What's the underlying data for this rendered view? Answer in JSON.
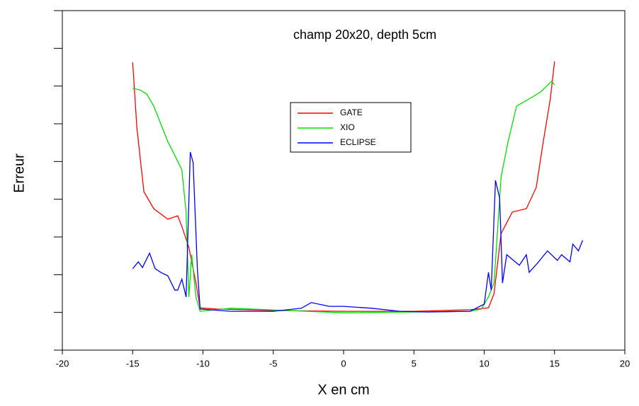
{
  "chart_data": {
    "type": "line",
    "title": "champ 20x20, depth 5cm",
    "xlabel": "X en cm",
    "ylabel": "Erreur",
    "xlim": [
      -20,
      20
    ],
    "xticks": [
      -20,
      -15,
      -10,
      -5,
      0,
      5,
      10,
      15,
      20
    ],
    "ylim": [
      0,
      9
    ],
    "yticks": [
      0,
      1,
      2,
      3,
      4,
      5,
      6,
      7,
      8,
      9
    ],
    "series": [
      {
        "name": "GATE",
        "color": "#ff0000",
        "x": [
          -15,
          -14.7,
          -14.2,
          -13.5,
          -12.5,
          -11.8,
          -11.5,
          -11,
          -10.5,
          -10.2,
          -9,
          -5,
          0,
          5,
          9,
          10.3,
          10.7,
          11.2,
          12,
          13,
          13.7,
          14.2,
          14.7,
          15
        ],
        "values": [
          7.63,
          5.9,
          4.2,
          3.75,
          3.47,
          3.56,
          3.28,
          2.72,
          1.78,
          1.12,
          1.09,
          1.05,
          1.03,
          1.03,
          1.07,
          1.12,
          1.5,
          3.09,
          3.66,
          3.75,
          4.31,
          5.53,
          6.66,
          7.65
        ]
      },
      {
        "name": "XIO",
        "color": "#00e000",
        "x": [
          -15,
          -14.5,
          -14,
          -13.5,
          -13,
          -12.5,
          -12,
          -11.5,
          -11.2,
          -11,
          -10.8,
          -10.5,
          -10.2,
          -8,
          0,
          9,
          9.8,
          10.3,
          10.7,
          11.2,
          11.7,
          12.3,
          13.2,
          14,
          14.8,
          15
        ],
        "values": [
          6.94,
          6.9,
          6.79,
          6.47,
          6.0,
          5.53,
          5.16,
          4.78,
          3.66,
          1.41,
          2.53,
          1.41,
          1.03,
          1.11,
          0.99,
          1.03,
          1.09,
          1.41,
          1.78,
          4.59,
          5.53,
          6.47,
          6.66,
          6.84,
          7.13,
          7.03
        ]
      },
      {
        "name": "ECLIPSE",
        "color": "#0000ff",
        "x": [
          -15,
          -14.6,
          -14.3,
          -13.8,
          -13.4,
          -13,
          -12.5,
          -12,
          -11.8,
          -11.5,
          -11.2,
          -10.9,
          -10.7,
          -10.4,
          -10.2,
          -8,
          -5,
          -3,
          -2.3,
          -1,
          0,
          2,
          4,
          6,
          9,
          10,
          10.3,
          10.5,
          10.8,
          11.1,
          11.3,
          11.6,
          12.5,
          13,
          13.2,
          13.8,
          14.5,
          15.2,
          15.5,
          16.1,
          16.3,
          16.7,
          17
        ],
        "values": [
          2.16,
          2.34,
          2.19,
          2.57,
          2.16,
          2.06,
          1.97,
          1.59,
          1.59,
          1.88,
          1.41,
          5.25,
          4.97,
          2.16,
          1.09,
          1.03,
          1.03,
          1.11,
          1.26,
          1.16,
          1.16,
          1.11,
          1.03,
          1.01,
          1.03,
          1.22,
          2.06,
          1.59,
          4.5,
          4.03,
          1.78,
          2.53,
          2.25,
          2.53,
          2.06,
          2.31,
          2.63,
          2.38,
          2.53,
          2.34,
          2.81,
          2.63,
          2.91
        ]
      }
    ]
  }
}
